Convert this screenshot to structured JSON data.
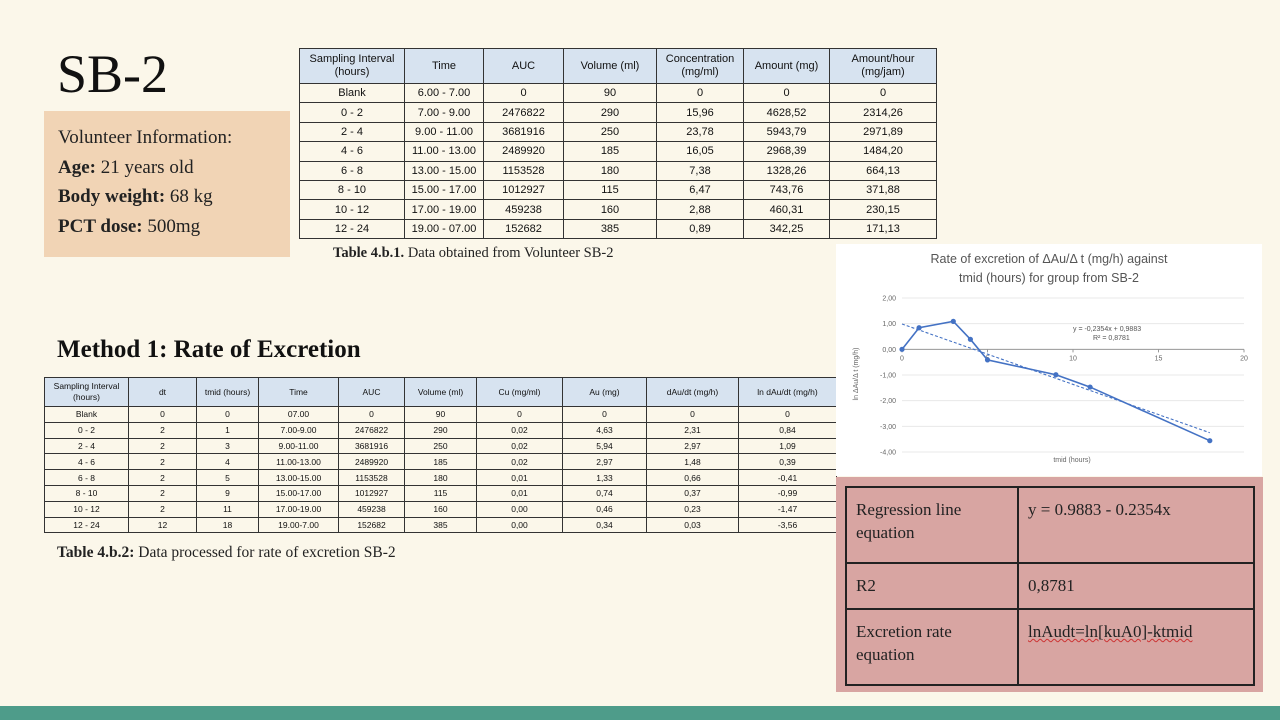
{
  "title": "SB-2",
  "volunteer": {
    "heading": "Volunteer Information:",
    "age_label": "Age:",
    "age_value": " 21 years old",
    "weight_label": "Body weight:",
    "weight_value": " 68 kg",
    "dose_label": "PCT dose:",
    "dose_value": " 500mg"
  },
  "table1": {
    "headers": [
      "Sampling Interval (hours)",
      "Time",
      "AUC",
      "Volume (ml)",
      "Concentration (mg/ml)",
      "Amount (mg)",
      "Amount/hour (mg/jam)"
    ],
    "rows": [
      [
        "Blank",
        "6.00 - 7.00",
        "0",
        "90",
        "0",
        "0",
        "0"
      ],
      [
        "0 - 2",
        "7.00 - 9.00",
        "2476822",
        "290",
        "15,96",
        "4628,52",
        "2314,26"
      ],
      [
        "2 - 4",
        "9.00 - 11.00",
        "3681916",
        "250",
        "23,78",
        "5943,79",
        "2971,89"
      ],
      [
        "4 - 6",
        "11.00 - 13.00",
        "2489920",
        "185",
        "16,05",
        "2968,39",
        "1484,20"
      ],
      [
        "6 - 8",
        "13.00 - 15.00",
        "1153528",
        "180",
        "7,38",
        "1328,26",
        "664,13"
      ],
      [
        "8 - 10",
        "15.00 - 17.00",
        "1012927",
        "115",
        "6,47",
        "743,76",
        "371,88"
      ],
      [
        "10 - 12",
        "17.00 - 19.00",
        "459238",
        "160",
        "2,88",
        "460,31",
        "230,15"
      ],
      [
        "12 - 24",
        "19.00 - 07.00",
        "152682",
        "385",
        "0,89",
        "342,25",
        "171,13"
      ]
    ],
    "caption_bold": "Table 4.b.1.",
    "caption_text": " Data obtained from Volunteer SB-2"
  },
  "method_title": "Method 1: Rate of Excretion",
  "table2": {
    "headers": [
      "Sampling Interval (hours)",
      "dt",
      "tmid (hours)",
      "Time",
      "AUC",
      "Volume (ml)",
      "Cu (mg/ml)",
      "Au (mg)",
      "dAu/dt (mg/h)",
      "ln dAu/dt (mg/h)"
    ],
    "rows": [
      [
        "Blank",
        "0",
        "0",
        "07.00",
        "0",
        "90",
        "0",
        "0",
        "0",
        "0"
      ],
      [
        "0 - 2",
        "2",
        "1",
        "7.00-9.00",
        "2476822",
        "290",
        "0,02",
        "4,63",
        "2,31",
        "0,84"
      ],
      [
        "2 - 4",
        "2",
        "3",
        "9.00-11.00",
        "3681916",
        "250",
        "0,02",
        "5,94",
        "2,97",
        "1,09"
      ],
      [
        "4 - 6",
        "2",
        "4",
        "11.00-13.00",
        "2489920",
        "185",
        "0,02",
        "2,97",
        "1,48",
        "0,39"
      ],
      [
        "6 - 8",
        "2",
        "5",
        "13.00-15.00",
        "1153528",
        "180",
        "0,01",
        "1,33",
        "0,66",
        "-0,41"
      ],
      [
        "8 - 10",
        "2",
        "9",
        "15.00-17.00",
        "1012927",
        "115",
        "0,01",
        "0,74",
        "0,37",
        "-0,99"
      ],
      [
        "10 - 12",
        "2",
        "11",
        "17.00-19.00",
        "459238",
        "160",
        "0,00",
        "0,46",
        "0,23",
        "-1,47"
      ],
      [
        "12 - 24",
        "12",
        "18",
        "19.00-7.00",
        "152682",
        "385",
        "0,00",
        "0,34",
        "0,03",
        "-3,56"
      ]
    ],
    "caption_bold": "Table 4.b.2:",
    "caption_text": " Data processed for rate of excretion SB-2"
  },
  "chart_data": {
    "type": "scatter",
    "title": "Rate of excretion of ΔAu/Δ t (mg/h) against tmid (hours) for group from SB-2",
    "title_line1": "Rate of excretion of ΔAu/Δ t (mg/h) against",
    "title_line2": "tmid (hours) for group from SB-2",
    "xlabel": "tmid (hours)",
    "ylabel": "ln ΔAu/Δ t (mg/h)",
    "xlim": [
      0,
      20
    ],
    "ylim": [
      -4,
      2
    ],
    "xticks": [
      "0",
      "5",
      "10",
      "15",
      "20"
    ],
    "yticks": [
      "2,00",
      "1,00",
      "0,00",
      "-1,00",
      "-2,00",
      "-3,00",
      "-4,00"
    ],
    "series": [
      {
        "x": [
          0,
          1,
          3,
          4,
          5,
          9,
          11,
          18
        ],
        "y": [
          0,
          0.84,
          1.09,
          0.39,
          -0.41,
          -0.99,
          -1.47,
          -3.56
        ]
      }
    ],
    "trendline": {
      "intercept": 0.9883,
      "slope": -0.2354
    },
    "equation_text": "y = -0,2354x + 0,9883",
    "r2_text": "R² = 0,8781",
    "color": "#4472c4"
  },
  "regression": {
    "rows": [
      {
        "label": "Regression line equation",
        "value": "y = 0.9883 - 0.2354x"
      },
      {
        "label": "R2",
        "value": "0,8781"
      },
      {
        "label": "Excretion rate equation",
        "value": "lnAudt=ln[kuA0]-ktmid"
      }
    ]
  },
  "colors": {
    "background": "#fbf7ea",
    "info_box": "#f1d4b5",
    "regression_box": "#d8a5a2",
    "bottom_bar": "#4e9c8a",
    "table_header": "#d7e3f0"
  }
}
